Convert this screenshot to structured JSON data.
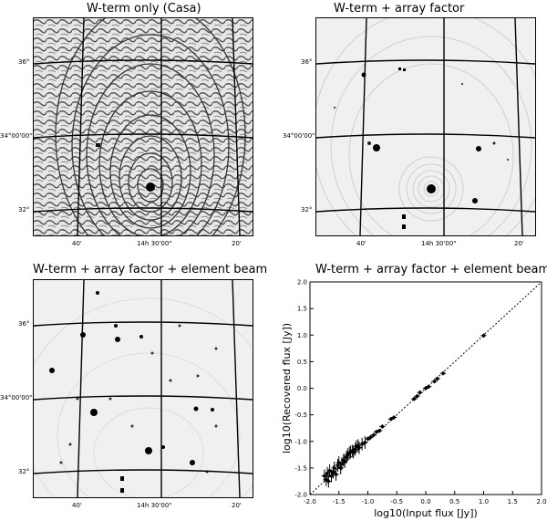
{
  "figure": {
    "panels": [
      {
        "title": "W-term only (Casa)",
        "dec_labels": [
          "36°",
          "34°00'00\"",
          "32°"
        ],
        "ra_labels": [
          "40'",
          "14h 30'00\"",
          "20'"
        ]
      },
      {
        "title": "W-term + array factor",
        "dec_labels": [
          "36°",
          "34°00'00\"",
          "32°"
        ],
        "ra_labels": [
          "40'",
          "14h 30'00\"",
          "20'"
        ]
      },
      {
        "title": "W-term + array factor + element beam",
        "dec_labels": [
          "36°",
          "34°00'00\"",
          "32°"
        ],
        "ra_labels": [
          "40'",
          "14h 30'00\"",
          "20'"
        ]
      }
    ]
  },
  "chart_data": {
    "type": "scatter",
    "title": "W-term + array factor + element beam",
    "xlabel": "log10(Input flux [Jy])",
    "ylabel": "log10(Recovered flux [Jy])",
    "xlim": [
      -2.0,
      2.0
    ],
    "ylim": [
      -2.0,
      2.0
    ],
    "x_ticks": [
      "-2.0",
      "-1.5",
      "-1.0",
      "-0.5",
      "0.0",
      "0.5",
      "1.0",
      "1.5",
      "2.0"
    ],
    "y_ticks": [
      "-2.0",
      "-1.5",
      "-1.0",
      "-0.5",
      "0.0",
      "0.5",
      "1.0",
      "1.5",
      "2.0"
    ],
    "reference_line": "y = x (dotted)",
    "series": [
      {
        "values": [
          [
            -1.75,
            -1.65
          ],
          [
            -1.72,
            -1.72
          ],
          [
            -1.7,
            -1.6
          ],
          [
            -1.68,
            -1.75
          ],
          [
            -1.66,
            -1.55
          ],
          [
            -1.63,
            -1.65
          ],
          [
            -1.6,
            -1.58
          ],
          [
            -1.58,
            -1.5
          ],
          [
            -1.55,
            -1.62
          ],
          [
            -1.52,
            -1.45
          ],
          [
            -1.5,
            -1.4
          ],
          [
            -1.47,
            -1.5
          ],
          [
            -1.45,
            -1.42
          ],
          [
            -1.42,
            -1.35
          ],
          [
            -1.4,
            -1.38
          ],
          [
            -1.37,
            -1.3
          ],
          [
            -1.35,
            -1.25
          ],
          [
            -1.32,
            -1.22
          ],
          [
            -1.3,
            -1.2
          ],
          [
            -1.27,
            -1.18
          ],
          [
            -1.25,
            -1.2
          ],
          [
            -1.22,
            -1.15
          ],
          [
            -1.2,
            -1.1
          ],
          [
            -1.17,
            -1.08
          ],
          [
            -1.15,
            -1.12
          ],
          [
            -1.1,
            -1.05
          ],
          [
            -1.05,
            -1.02
          ],
          [
            -1.0,
            -0.95
          ],
          [
            -0.95,
            -0.92
          ],
          [
            -0.9,
            -0.88
          ],
          [
            -0.85,
            -0.82
          ],
          [
            -0.8,
            -0.8
          ],
          [
            -0.75,
            -0.72
          ],
          [
            -0.6,
            -0.58
          ],
          [
            -0.55,
            -0.55
          ],
          [
            -0.2,
            -0.2
          ],
          [
            -0.15,
            -0.15
          ],
          [
            -0.1,
            -0.08
          ],
          [
            0.0,
            0.0
          ],
          [
            0.05,
            0.03
          ],
          [
            0.15,
            0.13
          ],
          [
            0.2,
            0.18
          ],
          [
            0.3,
            0.28
          ],
          [
            1.0,
            0.99
          ]
        ]
      }
    ]
  }
}
